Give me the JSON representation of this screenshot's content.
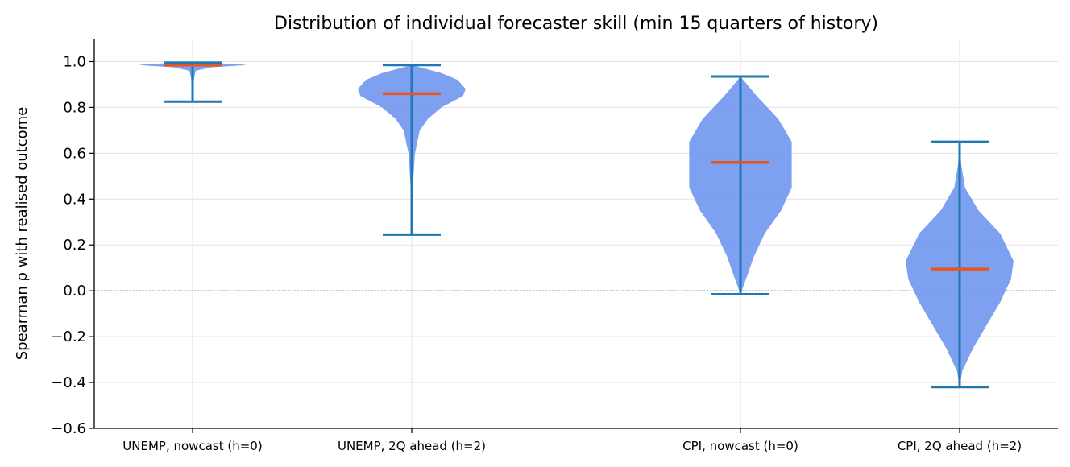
{
  "chart_data": {
    "type": "violin",
    "title": "Distribution of individual forecaster skill (min 15 quarters of history)",
    "xlabel": "",
    "ylabel": "Spearman ρ with realised outcome",
    "ylim": [
      -0.6,
      1.1
    ],
    "yticks": [
      -0.6,
      -0.4,
      -0.2,
      0.0,
      0.2,
      0.4,
      0.6,
      0.8,
      1.0
    ],
    "ytick_labels": [
      "−0.6",
      "−0.4",
      "−0.2",
      "0.0",
      "0.2",
      "0.4",
      "0.6",
      "0.8",
      "1.0"
    ],
    "grid": true,
    "reference_line_y": 0.0,
    "violin_color": "#6f97ee",
    "whisker_color": "#1f77b4",
    "median_color": "#e8541e",
    "categories": [
      "UNEMP, nowcast (h=0)",
      "UNEMP, 2Q ahead (h=2)",
      "CPI, nowcast (h=0)",
      "CPI, 2Q ahead (h=2)"
    ],
    "positions": [
      0,
      1,
      2.5,
      3.5
    ],
    "violins": [
      {
        "category": "UNEMP, nowcast (h=0)",
        "min": 0.825,
        "max": 0.995,
        "median": 0.985,
        "density": [
          [
            0.825,
            0.0
          ],
          [
            0.9,
            0.02
          ],
          [
            0.93,
            0.03
          ],
          [
            0.96,
            0.06
          ],
          [
            0.975,
            0.35
          ],
          [
            0.985,
            1.0
          ],
          [
            0.99,
            0.8
          ],
          [
            0.995,
            0.0
          ]
        ]
      },
      {
        "category": "UNEMP, 2Q ahead (h=2)",
        "min": 0.245,
        "max": 0.985,
        "median": 0.86,
        "density": [
          [
            0.245,
            0.0
          ],
          [
            0.3,
            0.005
          ],
          [
            0.45,
            0.02
          ],
          [
            0.6,
            0.06
          ],
          [
            0.7,
            0.15
          ],
          [
            0.75,
            0.3
          ],
          [
            0.8,
            0.55
          ],
          [
            0.85,
            0.95
          ],
          [
            0.88,
            1.0
          ],
          [
            0.92,
            0.85
          ],
          [
            0.95,
            0.55
          ],
          [
            0.985,
            0.0
          ]
        ]
      },
      {
        "category": "CPI, nowcast (h=0)",
        "min": -0.015,
        "max": 0.935,
        "median": 0.56,
        "density": [
          [
            -0.015,
            0.0
          ],
          [
            0.05,
            0.1
          ],
          [
            0.15,
            0.25
          ],
          [
            0.25,
            0.45
          ],
          [
            0.35,
            0.75
          ],
          [
            0.45,
            0.95
          ],
          [
            0.55,
            0.95
          ],
          [
            0.65,
            0.95
          ],
          [
            0.75,
            0.7
          ],
          [
            0.85,
            0.3
          ],
          [
            0.935,
            0.0
          ]
        ]
      },
      {
        "category": "CPI, 2Q ahead (h=2)",
        "min": -0.42,
        "max": 0.65,
        "median": 0.095,
        "density": [
          [
            -0.42,
            0.0
          ],
          [
            -0.35,
            0.05
          ],
          [
            -0.25,
            0.25
          ],
          [
            -0.15,
            0.5
          ],
          [
            -0.05,
            0.75
          ],
          [
            0.05,
            0.95
          ],
          [
            0.13,
            1.0
          ],
          [
            0.25,
            0.75
          ],
          [
            0.35,
            0.35
          ],
          [
            0.45,
            0.1
          ],
          [
            0.55,
            0.03
          ],
          [
            0.65,
            0.0
          ]
        ]
      }
    ]
  }
}
